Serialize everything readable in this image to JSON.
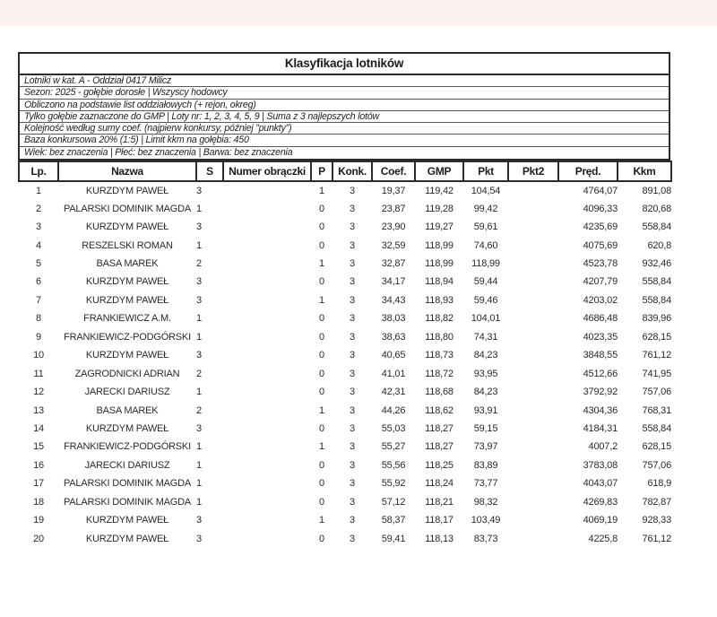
{
  "page": {
    "title": "Klasyfikacja lotników"
  },
  "info_lines": [
    "Lotniki w kat. A - Oddział 0417 Milicz",
    "Sezon: 2025 - gołębie dorosłe  |  Wszyscy hodowcy",
    "Obliczono na podstawie list oddziałowych (+ rejon, okreg)",
    "Tylko gołębie zaznaczone do GMP  |  Loty nr: 1, 2, 3, 4, 5, 9  |  Suma z 3 najlepszych lotów",
    "Kolejność według sumy coef. (najpierw konkursy, później ”punkty”)",
    "Baza konkursowa 20% (1:5) | Limit kkm na gołębia: 450",
    "Wiek: bez znaczenia  |  Płeć: bez znaczenia  |  Barwa: bez znaczenia"
  ],
  "table": {
    "columns": [
      "Lp.",
      "Nazwa",
      "S",
      "Numer obrączki",
      "P",
      "Konk.",
      "Coef.",
      "GMP",
      "Pkt",
      "Pkt2",
      "Pręd.",
      "Kkm"
    ],
    "rows": [
      [
        "1",
        "KURZDYM PAWEŁ",
        "3",
        "",
        "1",
        "3",
        "19,37",
        "119,42",
        "104,54",
        "",
        "4764,07",
        "891,08"
      ],
      [
        "2",
        "PALARSKI DOMINIK MAGDA",
        "1",
        "",
        "0",
        "3",
        "23,87",
        "119,28",
        "99,42",
        "",
        "4096,33",
        "820,68"
      ],
      [
        "3",
        "KURZDYM PAWEŁ",
        "3",
        "",
        "0",
        "3",
        "23,90",
        "119,27",
        "59,61",
        "",
        "4235,69",
        "558,84"
      ],
      [
        "4",
        "RESZELSKI ROMAN",
        "1",
        "",
        "0",
        "3",
        "32,59",
        "118,99",
        "74,60",
        "",
        "4075,69",
        "620,8"
      ],
      [
        "5",
        "BASA MAREK",
        "2",
        "",
        "1",
        "3",
        "32,87",
        "118,99",
        "118,99",
        "",
        "4523,78",
        "932,46"
      ],
      [
        "6",
        "KURZDYM PAWEŁ",
        "3",
        "",
        "0",
        "3",
        "34,17",
        "118,94",
        "59,44",
        "",
        "4207,79",
        "558,84"
      ],
      [
        "7",
        "KURZDYM PAWEŁ",
        "3",
        "",
        "1",
        "3",
        "34,43",
        "118,93",
        "59,46",
        "",
        "4203,02",
        "558,84"
      ],
      [
        "8",
        "FRANKIEWICZ A.M.",
        "1",
        "",
        "0",
        "3",
        "38,03",
        "118,82",
        "104,01",
        "",
        "4686,48",
        "839,96"
      ],
      [
        "9",
        "FRANKIEWICZ-PODGÓRSKI",
        "1",
        "",
        "0",
        "3",
        "38,63",
        "118,80",
        "74,31",
        "",
        "4023,35",
        "628,15"
      ],
      [
        "10",
        "KURZDYM PAWEŁ",
        "3",
        "",
        "0",
        "3",
        "40,65",
        "118,73",
        "84,23",
        "",
        "3848,55",
        "761,12"
      ],
      [
        "11",
        "ZAGRODNICKI ADRIAN",
        "2",
        "",
        "0",
        "3",
        "41,01",
        "118,72",
        "93,95",
        "",
        "4512,66",
        "741,95"
      ],
      [
        "12",
        "JARECKI DARIUSZ",
        "1",
        "",
        "0",
        "3",
        "42,31",
        "118,68",
        "84,23",
        "",
        "3792,92",
        "757,06"
      ],
      [
        "13",
        "BASA MAREK",
        "2",
        "",
        "1",
        "3",
        "44,26",
        "118,62",
        "93,91",
        "",
        "4304,36",
        "768,31"
      ],
      [
        "14",
        "KURZDYM PAWEŁ",
        "3",
        "",
        "0",
        "3",
        "55,03",
        "118,27",
        "59,15",
        "",
        "4184,31",
        "558,84"
      ],
      [
        "15",
        "FRANKIEWICZ-PODGÓRSKI",
        "1",
        "",
        "1",
        "3",
        "55,27",
        "118,27",
        "73,97",
        "",
        "4007,2",
        "628,15"
      ],
      [
        "16",
        "JARECKI DARIUSZ",
        "1",
        "",
        "0",
        "3",
        "55,56",
        "118,25",
        "83,89",
        "",
        "3783,08",
        "757,06"
      ],
      [
        "17",
        "PALARSKI DOMINIK MAGDA",
        "1",
        "",
        "0",
        "3",
        "55,92",
        "118,24",
        "73,77",
        "",
        "4043,07",
        "618,9"
      ],
      [
        "18",
        "PALARSKI DOMINIK MAGDA",
        "1",
        "",
        "0",
        "3",
        "57,12",
        "118,21",
        "98,32",
        "",
        "4269,83",
        "782,87"
      ],
      [
        "19",
        "KURZDYM PAWEŁ",
        "3",
        "",
        "1",
        "3",
        "58,37",
        "118,17",
        "103,49",
        "",
        "4069,19",
        "928,33"
      ],
      [
        "20",
        "KURZDYM PAWEŁ",
        "3",
        "",
        "0",
        "3",
        "59,41",
        "118,13",
        "83,73",
        "",
        "4225,8",
        "761,12"
      ]
    ]
  }
}
